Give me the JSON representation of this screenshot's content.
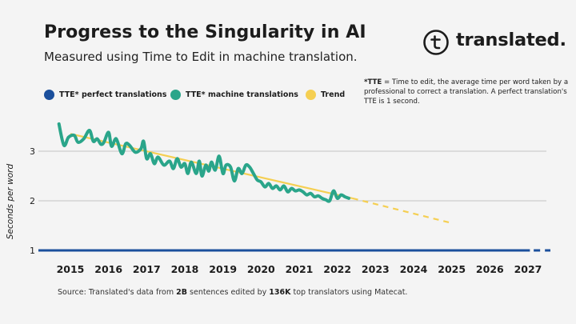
{
  "header": {
    "title": "Progress to the Singularity in AI",
    "subtitle": "Measured using Time to Edit in machine translation."
  },
  "logo": {
    "text": "translated.",
    "icon": "t-circle-logo-icon"
  },
  "note": {
    "term": "*TTE",
    "text": " = Time to edit, the average time per word taken by a professional to correct a translation. A perfect translation's TTE is 1 second."
  },
  "source": {
    "prefix": "Source: Translated's data from ",
    "bold1": "2B",
    "middle": " sentences edited by ",
    "bold2": "136K",
    "suffix": " top translators using Matecat."
  },
  "colors": {
    "perfect": "#1b4f9c",
    "machine": "#2aa58a",
    "trend": "#f5cf52",
    "grid": "#c4c4c4"
  },
  "chart_data": {
    "type": "line",
    "ylabel": "Seconds per word",
    "xlim": [
      2014.6,
      2027.6
    ],
    "ylim": [
      1,
      3.6
    ],
    "x_ticks": [
      2015,
      2016,
      2017,
      2018,
      2019,
      2020,
      2021,
      2022,
      2023,
      2024,
      2025,
      2026,
      2027
    ],
    "x_tick_labels": [
      "2015",
      "2016",
      "2017",
      "2018",
      "2019",
      "2020",
      "2021",
      "2022",
      "2023",
      "2024",
      "2025",
      "2026",
      "2027"
    ],
    "y_ticks": [
      1,
      2,
      3
    ],
    "y_tick_labels": [
      "1",
      "2",
      "3"
    ],
    "grid": true,
    "legend": "top-left",
    "series": [
      {
        "name": "TTE* perfect translations",
        "style": "solid then dashed",
        "x": [
          2014.7,
          2027.5
        ],
        "y": [
          1,
          1
        ]
      },
      {
        "name": "TTE* machine translations",
        "style": "solid",
        "x": [
          2014.7,
          2014.83,
          2014.95,
          2015.1,
          2015.2,
          2015.35,
          2015.5,
          2015.6,
          2015.7,
          2015.8,
          2015.88,
          2016.0,
          2016.08,
          2016.2,
          2016.35,
          2016.45,
          2016.55,
          2016.7,
          2016.85,
          2016.92,
          2017.0,
          2017.1,
          2017.2,
          2017.3,
          2017.45,
          2017.6,
          2017.7,
          2017.8,
          2017.9,
          2018.0,
          2018.08,
          2018.17,
          2018.3,
          2018.38,
          2018.45,
          2018.55,
          2018.63,
          2018.7,
          2018.8,
          2018.9,
          2019.0,
          2019.08,
          2019.2,
          2019.3,
          2019.4,
          2019.5,
          2019.6,
          2019.7,
          2019.8,
          2019.9,
          2020.0,
          2020.1,
          2020.2,
          2020.3,
          2020.4,
          2020.5,
          2020.6,
          2020.7,
          2020.8,
          2020.9,
          2021.0,
          2021.1,
          2021.2,
          2021.3,
          2021.4,
          2021.5,
          2021.6,
          2021.7,
          2021.8,
          2021.9,
          2022.0,
          2022.1,
          2022.2,
          2022.3
        ],
        "y": [
          3.55,
          3.12,
          3.28,
          3.32,
          3.18,
          3.25,
          3.42,
          3.2,
          3.25,
          3.14,
          3.18,
          3.38,
          3.1,
          3.25,
          2.95,
          3.15,
          3.12,
          2.98,
          3.05,
          3.2,
          2.85,
          2.95,
          2.75,
          2.88,
          2.72,
          2.8,
          2.65,
          2.85,
          2.68,
          2.75,
          2.55,
          2.78,
          2.55,
          2.8,
          2.5,
          2.72,
          2.6,
          2.78,
          2.62,
          2.9,
          2.55,
          2.72,
          2.68,
          2.4,
          2.65,
          2.55,
          2.72,
          2.68,
          2.55,
          2.42,
          2.38,
          2.28,
          2.35,
          2.25,
          2.3,
          2.22,
          2.3,
          2.18,
          2.25,
          2.2,
          2.22,
          2.18,
          2.12,
          2.15,
          2.08,
          2.1,
          2.05,
          2.02,
          2.0,
          2.2,
          2.05,
          2.12,
          2.08,
          2.05
        ]
      },
      {
        "name": "Trend",
        "style": "solid to 2022.4, dashed after",
        "x": [
          2015.0,
          2022.4,
          2025.0
        ],
        "y": [
          3.35,
          2.05,
          1.55
        ]
      }
    ]
  }
}
